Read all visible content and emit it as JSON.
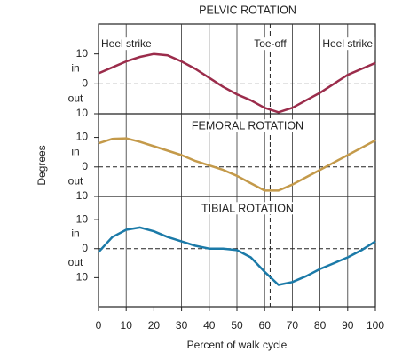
{
  "chart_data": [
    {
      "type": "line",
      "title": "PELVIC ROTATION",
      "color": "#9b2c4b",
      "x": [
        0,
        5,
        10,
        15,
        20,
        25,
        30,
        35,
        40,
        45,
        50,
        55,
        60,
        65,
        70,
        75,
        80,
        85,
        90,
        95,
        100
      ],
      "values": [
        3.5,
        5.5,
        7.5,
        9,
        10,
        9.5,
        7.5,
        5,
        2,
        -1,
        -3.5,
        -5.5,
        -8,
        -9.5,
        -8,
        -5.5,
        -3,
        0,
        3,
        5,
        7
      ],
      "xlim": [
        0,
        100
      ],
      "xticks": [
        0,
        10,
        20,
        30,
        40,
        50,
        60,
        70,
        80,
        90,
        100
      ],
      "ylim": [
        -10,
        20
      ],
      "yticks": [
        10,
        0,
        {
          "value": -10,
          "label": "10"
        }
      ],
      "in_label": "in",
      "out_label": "out",
      "vline": 62,
      "annotations": [
        {
          "text": "Heel strike",
          "x": 0
        },
        {
          "text": "Toe-off",
          "x": 62
        },
        {
          "text": "Heel strike",
          "x": 100
        }
      ]
    },
    {
      "type": "line",
      "title": "FEMORAL ROTATION",
      "color": "#c49a4a",
      "x": [
        0,
        5,
        10,
        15,
        20,
        25,
        30,
        35,
        40,
        45,
        50,
        55,
        60,
        65,
        70,
        75,
        80,
        85,
        90,
        95,
        100
      ],
      "values": [
        8,
        9.5,
        9.7,
        8.5,
        7,
        5.5,
        4,
        2,
        0.5,
        -1,
        -3,
        -5.5,
        -8,
        -8,
        -6,
        -3.5,
        -1,
        1.5,
        4,
        6.5,
        9
      ],
      "xlim": [
        0,
        100
      ],
      "xticks": [
        0,
        10,
        20,
        30,
        40,
        50,
        60,
        70,
        80,
        90,
        100
      ],
      "ylim": [
        -10,
        18
      ],
      "yticks": [
        10,
        0,
        {
          "value": -10,
          "label": "10"
        }
      ],
      "in_label": "in",
      "out_label": "out",
      "vline": 62,
      "ylabel": "Degrees"
    },
    {
      "type": "line",
      "title": "TIBIAL ROTATION",
      "color": "#1b7aa8",
      "x": [
        0,
        5,
        10,
        15,
        20,
        25,
        30,
        35,
        40,
        45,
        50,
        55,
        60,
        65,
        70,
        75,
        80,
        85,
        90,
        95,
        100
      ],
      "values": [
        -1.2,
        4,
        6.5,
        7.3,
        6,
        4,
        2.5,
        1,
        0,
        0,
        -0.5,
        -3,
        -8,
        -12.5,
        -11.5,
        -9.5,
        -7,
        -5,
        -3,
        -0.5,
        2.5
      ],
      "xlim": [
        0,
        100
      ],
      "xticks": [
        0,
        10,
        20,
        30,
        40,
        50,
        60,
        70,
        80,
        90,
        100
      ],
      "ylim": [
        -20,
        18
      ],
      "yticks": [
        10,
        0,
        {
          "value": -10,
          "label": "10"
        }
      ],
      "in_label": "in",
      "out_label": "out",
      "vline": 62,
      "xlabel": "Percent of walk cycle"
    }
  ]
}
